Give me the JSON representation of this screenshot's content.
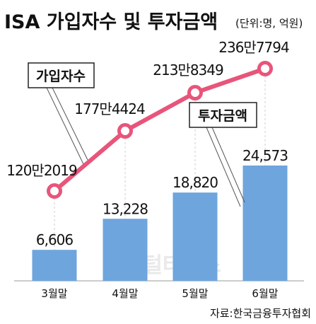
{
  "header": {
    "title": "ISA 가입자수 및 투자금액",
    "unit": "(단위:명, 억원)"
  },
  "source": "자료:한국금융투자협회",
  "watermark": "디지털타임스",
  "colors": {
    "bar": "#6ea5dd",
    "line": "#e8557a",
    "background": "#ffffff",
    "grid": "#cfcfcf"
  },
  "chart_data": {
    "type": "bar+line",
    "categories": [
      "3월말",
      "4월말",
      "5월말",
      "6월말"
    ],
    "series": [
      {
        "name": "투자금액",
        "type": "bar",
        "values": [
          6606,
          13228,
          18820,
          24573
        ],
        "labels": [
          "6,606",
          "13,228",
          "18,820",
          "24,573"
        ]
      },
      {
        "name": "가입자수",
        "type": "line",
        "values": [
          1202019,
          1774424,
          2138349,
          2367794
        ],
        "labels": [
          "120만2019",
          "177만4424",
          "213만8349",
          "236만7794"
        ]
      }
    ],
    "legend": [
      "가입자수",
      "투자금액"
    ]
  }
}
